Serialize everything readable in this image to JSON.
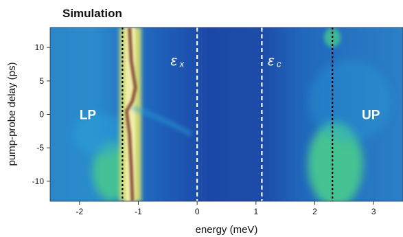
{
  "chart_data": {
    "type": "heatmap",
    "title": "Simulation",
    "xlabel": "energy (meV)",
    "ylabel": "pump-probe delay (ps)",
    "xlim": [
      -2.5,
      3.5
    ],
    "ylim": [
      -13,
      13
    ],
    "xticks": [
      -2,
      -1,
      0,
      1,
      2,
      3
    ],
    "yticks": [
      -10,
      -5,
      0,
      5,
      10
    ],
    "colormap": [
      "#1a3a9a",
      "#1e5cc0",
      "#2aa0d8",
      "#46c890",
      "#d8e070",
      "#f4f0b0",
      "#7a3a28"
    ],
    "vertical_lines": [
      {
        "x": -1.27,
        "style": "dotted",
        "color": "#000000"
      },
      {
        "x": 0.0,
        "style": "dashed",
        "color": "#ffffff"
      },
      {
        "x": 1.1,
        "style": "dashed",
        "color": "#ffffff"
      },
      {
        "x": 2.3,
        "style": "dotted",
        "color": "#000000"
      }
    ],
    "annotations": [
      {
        "text": "LP",
        "x": -2.0,
        "y": 0
      },
      {
        "text": "UP",
        "x": 2.8,
        "y": 0
      },
      {
        "text": "ε",
        "sub": "x",
        "x": -0.45,
        "y": 8
      },
      {
        "text": "ε",
        "sub": "c",
        "x": 1.2,
        "y": 8
      }
    ]
  }
}
